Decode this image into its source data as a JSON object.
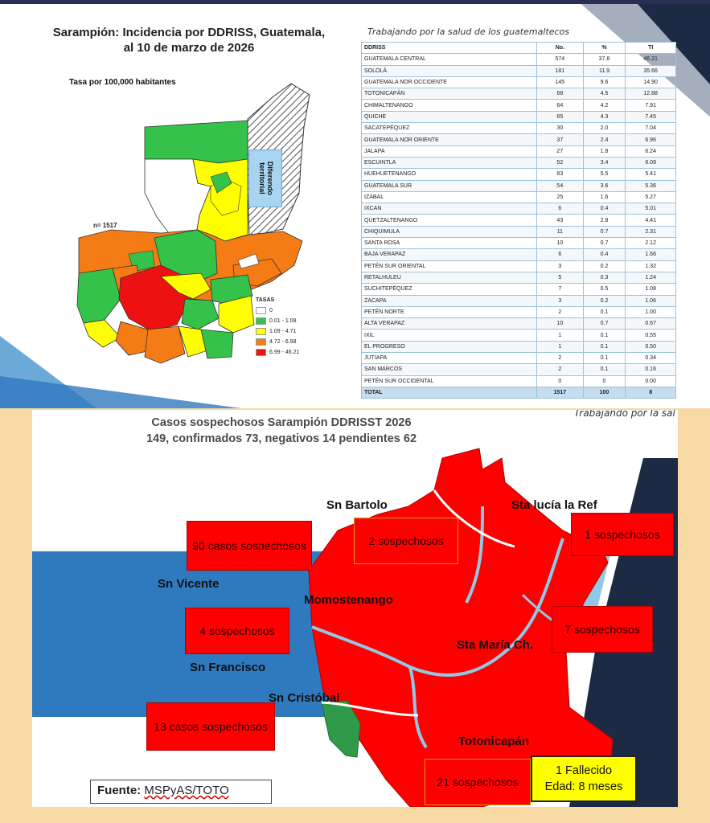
{
  "top": {
    "title_line1": "Sarampión: Incidencia por DDRISS, Guatemala,",
    "title_line2": "al 10 de marzo de 2026",
    "subtitle": "Tasa por 100,000 habitantes",
    "n_label": "n= 1517",
    "dispute_label_line1": "Diferendo",
    "dispute_label_line2": "territorial",
    "legend": {
      "title": "TASAS",
      "items": [
        {
          "label": "0",
          "color": "#ffffff"
        },
        {
          "label": "0.01 - 1.08",
          "color": "#35c24a"
        },
        {
          "label": "1.09 - 4.71",
          "color": "#ffff00"
        },
        {
          "label": "4.72 - 6.98",
          "color": "#f57c14"
        },
        {
          "label": "6.99 - 46.21",
          "color": "#ee1111"
        }
      ]
    },
    "table_caption": "Trabajando por la salud de los guatemaltecos",
    "table": {
      "headers": [
        "DDRISS",
        "No.",
        "%",
        "TI"
      ],
      "rows": [
        [
          "GUATEMALA CENTRAL",
          "574",
          "37.8",
          "46.21"
        ],
        [
          "SOLOLÁ",
          "181",
          "11.9",
          "35.66"
        ],
        [
          "GUATEMALA NOR OCCIDENTE",
          "145",
          "9.6",
          "14.90"
        ],
        [
          "TOTONICAPÁN",
          "68",
          "4.5",
          "12.88"
        ],
        [
          "CHIMALTENANGO",
          "64",
          "4.2",
          "7.91"
        ],
        [
          "QUICHE",
          "65",
          "4.3",
          "7.45"
        ],
        [
          "SACATEPÉQUEZ",
          "30",
          "2.0",
          "7.04"
        ],
        [
          "GUATEMALA NOR ORIENTE",
          "37",
          "2.4",
          "6.96"
        ],
        [
          "JALAPA",
          "27",
          "1.8",
          "6.24"
        ],
        [
          "ESCUINTLA",
          "52",
          "3.4",
          "6.09"
        ],
        [
          "HUEHUETENANGO",
          "83",
          "5.5",
          "5.41"
        ],
        [
          "GUATEMALA SUR",
          "54",
          "3.6",
          "5.36"
        ],
        [
          "IZABAL",
          "25",
          "1.6",
          "5.27"
        ],
        [
          "IXCAN",
          "6",
          "0.4",
          "5.01"
        ],
        [
          "QUETZALTENANGO",
          "43",
          "2.8",
          "4.41"
        ],
        [
          "CHIQUIMULA",
          "11",
          "0.7",
          "2.31"
        ],
        [
          "SANTA ROSA",
          "10",
          "0.7",
          "2.12"
        ],
        [
          "BAJA VERAPAZ",
          "6",
          "0.4",
          "1.66"
        ],
        [
          "PETÉN SUR ORIENTAL",
          "3",
          "0.2",
          "1.32"
        ],
        [
          "RETALHULEU",
          "5",
          "0.3",
          "1.24"
        ],
        [
          "SUCHITEPÉQUEZ",
          "7",
          "0.5",
          "1.08"
        ],
        [
          "ZACAPA",
          "3",
          "0.2",
          "1.06"
        ],
        [
          "PETÉN NORTE",
          "2",
          "0.1",
          "1.00"
        ],
        [
          "ALTA VERAPAZ",
          "10",
          "0.7",
          "0.67"
        ],
        [
          "IXIL",
          "1",
          "0.1",
          "0.55"
        ],
        [
          "EL PROGRESO",
          "1",
          "0.1",
          "0.50"
        ],
        [
          "JUTIAPA",
          "2",
          "0.1",
          "0.34"
        ],
        [
          "SAN MARCOS",
          "2",
          "0.1",
          "0.16"
        ],
        [
          "PETÉN SUR OCCIDENTAL",
          "0",
          "0",
          "0.00"
        ]
      ],
      "total": [
        "TOTAL",
        "1517",
        "100",
        "8"
      ]
    }
  },
  "bottom": {
    "title_line1": "Casos sospechosos Sarampión DDRISST 2026",
    "title_line2": "149, confirmados 73,  negativos 14 pendientes 62",
    "caption": "Trabajando por la sal",
    "places": {
      "sn_bartolo": "Sn  Bartolo",
      "sta_lucia": "Sta lucía la Ref",
      "sn_vicente": "Sn Vicente",
      "momostenango": "Momostenango",
      "sta_maria": "Sta María Ch.",
      "sn_francisco": "Sn Francisco",
      "sn_cristobal": "Sn Cristóbal",
      "totonicapan": "Totonicapán"
    },
    "boxes": {
      "b90": "90 casos sospechosos",
      "b2": "2 sospechosos",
      "b1": "1 sospechosos",
      "b4": "4 sospechosos",
      "b7": "7 sospechosos",
      "b13": "13 casos sospechosos",
      "b21": "21 sospechosos"
    },
    "death_line1": "1 Fallecido",
    "death_line2": "Edad: 8 meses",
    "source_label": "Fuente:",
    "source_value": "MSPyAS/TOTO",
    "colors": {
      "municipio_red": "#ff0000",
      "municipio_green": "#2e9a4a",
      "river": "#8fc9e6",
      "navy": "#1c2a44",
      "blue_band": "#2f79bf"
    }
  }
}
